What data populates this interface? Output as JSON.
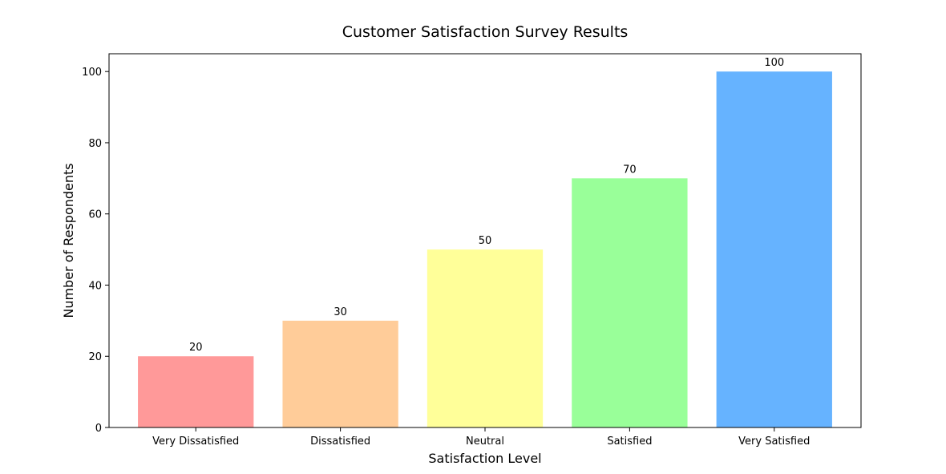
{
  "chart_data": {
    "type": "bar",
    "title": "Customer Satisfaction Survey Results",
    "xlabel": "Satisfaction Level",
    "ylabel": "Number of Respondents",
    "categories": [
      "Very Dissatisfied",
      "Dissatisfied",
      "Neutral",
      "Satisfied",
      "Very Satisfied"
    ],
    "values": [
      20,
      30,
      50,
      70,
      100
    ],
    "data_labels": [
      "20",
      "30",
      "50",
      "70",
      "100"
    ],
    "colors": [
      "#ff9999",
      "#ffcc99",
      "#ffff99",
      "#99ff99",
      "#66b3ff"
    ],
    "ylim": [
      0,
      105
    ],
    "yticks": [
      0,
      20,
      40,
      60,
      80,
      100
    ],
    "ytick_labels": [
      "0",
      "20",
      "40",
      "60",
      "80",
      "100"
    ],
    "grid": false,
    "legend": "none"
  }
}
